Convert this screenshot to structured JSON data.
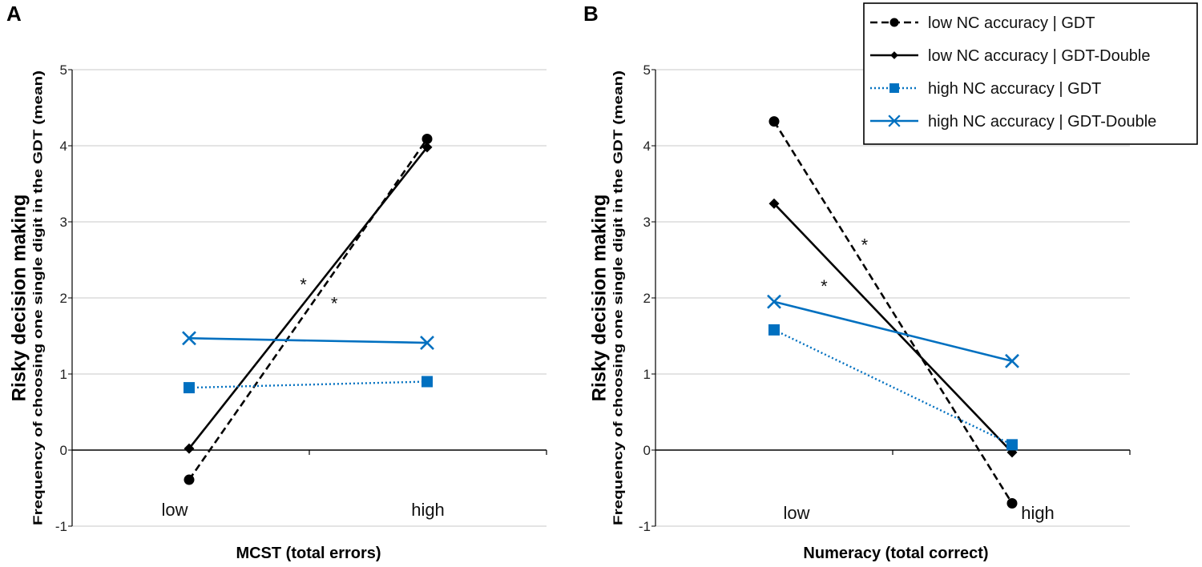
{
  "legend": {
    "entries": [
      {
        "label": "low NC accuracy | GDT",
        "series": "lowGDT"
      },
      {
        "label": "low NC accuracy | GDT-Double",
        "series": "lowDouble"
      },
      {
        "label": "high NC accuracy | GDT",
        "series": "highGDT"
      },
      {
        "label": "high NC accuracy | GDT-Double",
        "series": "highDouble"
      }
    ],
    "placement": "top-right"
  },
  "styles": {
    "lowGDT": {
      "color": "#000000",
      "dash": "dashed",
      "marker": "circle"
    },
    "lowDouble": {
      "color": "#000000",
      "dash": "solid",
      "marker": "diamond"
    },
    "highGDT": {
      "color": "#0070C0",
      "dash": "dotted",
      "marker": "square"
    },
    "highDouble": {
      "color": "#0070C0",
      "dash": "solid",
      "marker": "x"
    }
  },
  "chart_data": [
    {
      "panel_label": "A",
      "type": "line",
      "title": "",
      "xlabel": "MCST (total errors)",
      "ylabel_main": "Risky decision making",
      "ylabel_sub": "Frequency of choosing one single digit in the GDT (mean)",
      "categories": [
        "low",
        "high"
      ],
      "ylim": [
        -1,
        5
      ],
      "yticks": [
        "-1",
        "0",
        "1",
        "2",
        "3",
        "4",
        "5"
      ],
      "grid": true,
      "series": [
        {
          "key": "lowGDT",
          "name": "low NC accuracy | GDT",
          "values": [
            -0.39,
            4.09
          ]
        },
        {
          "key": "lowDouble",
          "name": "low NC accuracy | GDT-Double",
          "values": [
            0.02,
            3.98
          ]
        },
        {
          "key": "highGDT",
          "name": "high NC accuracy | GDT",
          "values": [
            0.82,
            0.9
          ]
        },
        {
          "key": "highDouble",
          "name": "high NC accuracy | GDT-Double",
          "values": [
            1.47,
            1.41
          ]
        }
      ],
      "annotations": [
        {
          "text": "*",
          "x": 0.48,
          "y": 2.18
        },
        {
          "text": "*",
          "x": 0.61,
          "y": 1.93
        }
      ]
    },
    {
      "panel_label": "B",
      "type": "line",
      "title": "",
      "xlabel": "Numeracy (total correct)",
      "ylabel_main": "Risky decision making",
      "ylabel_sub": "Frequency of choosing one single digit in the GDT (mean)",
      "categories": [
        "low",
        "high"
      ],
      "ylim": [
        -1,
        5
      ],
      "yticks": [
        "-1",
        "0",
        "1",
        "2",
        "3",
        "4",
        "5"
      ],
      "grid": true,
      "series": [
        {
          "key": "lowGDT",
          "name": "low NC accuracy | GDT",
          "values": [
            4.32,
            -0.7
          ]
        },
        {
          "key": "lowDouble",
          "name": "low NC accuracy | GDT-Double",
          "values": [
            3.24,
            -0.03
          ]
        },
        {
          "key": "highGDT",
          "name": "high NC accuracy | GDT",
          "values": [
            1.58,
            0.07
          ]
        },
        {
          "key": "highDouble",
          "name": "high NC accuracy | GDT-Double",
          "values": [
            1.95,
            1.17
          ]
        }
      ],
      "annotations": [
        {
          "text": "*",
          "x": 0.38,
          "y": 2.7
        },
        {
          "text": "*",
          "x": 0.21,
          "y": 2.16
        }
      ]
    }
  ]
}
